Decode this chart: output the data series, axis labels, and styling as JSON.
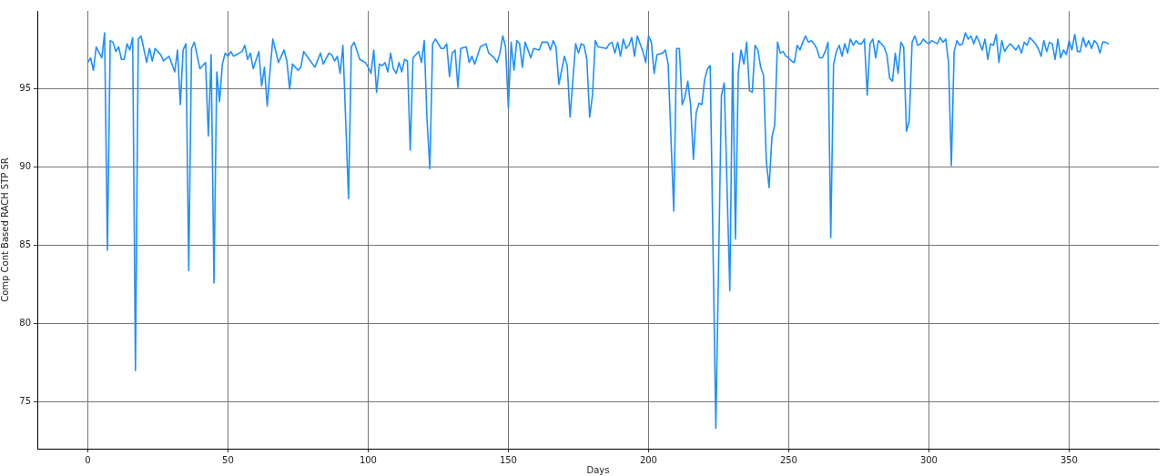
{
  "chart_data": {
    "type": "line",
    "xlabel": "Days",
    "ylabel": "Comp Cont Based RACH STP SR",
    "xlim": [
      -18,
      382
    ],
    "ylim": [
      72,
      100
    ],
    "xticks": [
      0,
      50,
      100,
      150,
      200,
      250,
      300,
      350
    ],
    "yticks": [
      75,
      80,
      85,
      90,
      95
    ],
    "grid": true,
    "marker": "none",
    "line_style": "solid",
    "series": [
      {
        "color": "#1e90ff",
        "x": [
          0,
          1,
          2,
          3,
          5,
          6,
          7,
          8,
          9,
          10,
          11,
          12,
          13,
          14,
          15,
          16,
          17,
          18,
          19,
          21,
          22,
          23,
          24,
          26,
          27,
          29,
          31,
          32,
          33,
          34,
          35,
          36,
          37,
          38,
          40,
          42,
          43,
          44,
          45,
          46,
          47,
          48,
          49,
          50,
          51,
          52,
          55,
          56,
          57,
          58,
          59,
          61,
          62,
          63,
          64,
          65,
          66,
          68,
          70,
          71,
          72,
          73,
          75,
          76,
          77,
          79,
          81,
          83,
          84,
          86,
          87,
          88,
          89,
          90,
          91,
          93,
          94,
          95,
          97,
          99,
          100,
          101,
          102,
          103,
          104,
          105,
          106,
          107,
          108,
          109,
          110,
          111,
          112,
          113,
          114,
          115,
          116,
          118,
          119,
          120,
          121,
          122,
          123,
          124,
          126,
          127,
          128,
          129,
          130,
          131,
          132,
          133,
          135,
          136,
          137,
          138,
          140,
          142,
          143,
          145,
          146,
          147,
          148,
          149,
          150,
          151,
          152,
          153,
          154,
          155,
          156,
          158,
          159,
          161,
          162,
          164,
          165,
          166,
          167,
          168,
          170,
          171,
          172,
          174,
          175,
          176,
          177,
          178,
          179,
          180,
          181,
          182,
          185,
          186,
          187,
          188,
          189,
          190,
          191,
          192,
          193,
          194,
          195,
          196,
          198,
          199,
          200,
          201,
          202,
          203,
          205,
          206,
          207,
          209,
          210,
          211,
          212,
          213,
          214,
          215,
          216,
          217,
          218,
          219,
          220,
          221,
          222,
          224,
          226,
          227,
          229,
          230,
          231,
          232,
          233,
          234,
          235,
          236,
          237,
          238,
          239,
          240,
          241,
          242,
          243,
          244,
          245,
          246,
          247,
          248,
          249,
          250,
          251,
          252,
          253,
          254,
          255,
          256,
          257,
          258,
          259,
          260,
          261,
          262,
          263,
          264,
          265,
          266,
          267,
          268,
          269,
          270,
          271,
          272,
          273,
          274,
          275,
          276,
          277,
          278,
          279,
          280,
          281,
          282,
          283,
          284,
          285,
          286,
          287,
          288,
          289,
          290,
          291,
          292,
          293,
          294,
          295,
          296,
          297,
          298,
          299,
          300,
          301,
          302,
          303,
          304,
          305,
          306,
          307,
          308,
          309,
          310,
          311,
          312,
          313,
          314,
          315,
          316,
          317,
          318,
          319,
          320,
          321,
          322,
          323,
          324,
          325,
          326,
          327,
          328,
          329,
          330,
          331,
          332,
          333,
          334,
          335,
          336,
          337,
          338,
          339,
          340,
          341,
          342,
          343,
          344,
          345,
          346,
          347,
          348,
          349,
          350,
          351,
          352,
          353,
          354,
          355,
          356,
          357,
          358,
          359,
          360,
          361,
          362,
          363,
          364
        ],
        "values": [
          96.7,
          97.0,
          96.2,
          97.7,
          97.0,
          98.6,
          84.7,
          98.1,
          98.0,
          97.4,
          97.7,
          96.9,
          96.9,
          97.9,
          97.5,
          98.3,
          77.0,
          98.2,
          98.4,
          96.7,
          97.6,
          96.8,
          97.6,
          97.2,
          96.8,
          97.1,
          96.1,
          97.5,
          94.0,
          97.5,
          97.9,
          83.4,
          97.6,
          98.0,
          96.3,
          96.7,
          92.0,
          97.2,
          82.6,
          96.1,
          94.2,
          96.6,
          97.3,
          97.1,
          97.4,
          97.1,
          97.4,
          97.8,
          96.9,
          97.3,
          96.3,
          97.4,
          95.2,
          96.4,
          93.9,
          96.2,
          98.2,
          96.7,
          97.5,
          96.8,
          95.0,
          96.6,
          96.2,
          96.4,
          97.4,
          96.9,
          96.4,
          97.3,
          96.6,
          97.3,
          97.2,
          96.8,
          97.1,
          96.0,
          97.8,
          88.0,
          97.7,
          98.0,
          96.9,
          96.7,
          96.4,
          96.0,
          97.5,
          94.8,
          96.6,
          96.5,
          96.7,
          96.1,
          97.3,
          96.3,
          96.0,
          96.7,
          96.1,
          96.9,
          96.8,
          91.1,
          97.0,
          97.4,
          96.7,
          98.1,
          93.0,
          89.9,
          97.9,
          98.2,
          97.6,
          97.6,
          97.9,
          95.8,
          97.3,
          97.5,
          95.1,
          97.6,
          97.7,
          96.7,
          97.1,
          96.6,
          97.7,
          97.9,
          97.3,
          97.0,
          96.7,
          97.3,
          98.4,
          97.7,
          93.8,
          98.0,
          96.2,
          98.1,
          97.9,
          96.4,
          98.0,
          97.0,
          97.6,
          97.5,
          98.0,
          98.0,
          97.5,
          98.1,
          97.7,
          95.3,
          97.1,
          96.5,
          93.2,
          97.9,
          97.3,
          97.9,
          97.8,
          96.9,
          93.2,
          94.6,
          98.1,
          97.7,
          97.6,
          97.9,
          98.0,
          97.3,
          98.0,
          97.1,
          98.2,
          97.6,
          97.8,
          98.3,
          97.1,
          98.4,
          97.4,
          96.7,
          98.4,
          98.0,
          96.0,
          97.2,
          97.3,
          97.5,
          96.6,
          87.2,
          97.6,
          97.6,
          94.0,
          94.5,
          95.5,
          94.0,
          90.5,
          93.5,
          94.1,
          94.0,
          95.6,
          96.3,
          96.5,
          73.3,
          94.6,
          95.4,
          82.1,
          97.3,
          85.4,
          96.0,
          97.5,
          96.6,
          98.0,
          94.9,
          94.8,
          97.8,
          97.5,
          96.4,
          95.9,
          90.4,
          88.7,
          91.9,
          92.7,
          98.0,
          97.3,
          97.4,
          97.1,
          97.0,
          96.8,
          96.7,
          97.8,
          97.5,
          98.0,
          98.4,
          98.0,
          98.1,
          97.9,
          97.6,
          97.0,
          97.0,
          97.4,
          98.0,
          85.5,
          96.6,
          97.4,
          97.8,
          97.1,
          97.9,
          97.3,
          98.2,
          97.8,
          98.1,
          97.9,
          97.9,
          98.2,
          94.6,
          97.9,
          98.2,
          97.0,
          98.1,
          97.9,
          97.7,
          97.2,
          95.7,
          95.5,
          97.3,
          96.0,
          98.0,
          97.7,
          92.3,
          93.0,
          98.0,
          98.4,
          97.8,
          97.9,
          98.2,
          98.0,
          97.9,
          98.1,
          98.0,
          97.9,
          98.3,
          98.0,
          98.2,
          96.7,
          90.1,
          97.4,
          98.1,
          97.8,
          97.9,
          98.6,
          98.2,
          98.4,
          97.9,
          98.4,
          98.0,
          97.5,
          98.2,
          96.9,
          97.9,
          97.8,
          98.5,
          96.7,
          98.1,
          97.4,
          97.7,
          97.9,
          97.7,
          97.5,
          97.8,
          97.3,
          98.0,
          97.8,
          98.3,
          98.1,
          97.9,
          97.6,
          97.1,
          98.1,
          97.4,
          98.0,
          97.9,
          96.9,
          98.2,
          97.0,
          97.5,
          97.2,
          98.1,
          97.5,
          98.5,
          97.4,
          97.4,
          98.3,
          97.7,
          98.1,
          97.6,
          98.1,
          97.9,
          97.3,
          98.0,
          98.0,
          97.9
        ]
      }
    ]
  }
}
